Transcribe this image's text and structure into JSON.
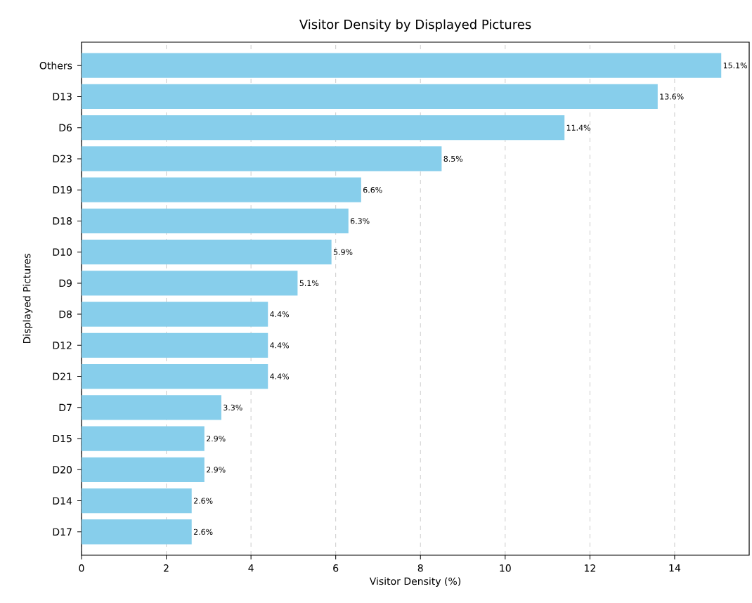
{
  "chart_data": {
    "type": "bar",
    "orientation": "horizontal",
    "title": "Visitor Density by Displayed Pictures",
    "xlabel": "Visitor Density (%)",
    "ylabel": "Displayed Pictures",
    "categories": [
      "Others",
      "D13",
      "D6",
      "D23",
      "D19",
      "D18",
      "D10",
      "D9",
      "D8",
      "D12",
      "D21",
      "D7",
      "D15",
      "D20",
      "D14",
      "D17"
    ],
    "values": [
      15.1,
      13.6,
      11.4,
      8.5,
      6.6,
      6.3,
      5.9,
      5.1,
      4.4,
      4.4,
      4.4,
      3.3,
      2.9,
      2.9,
      2.6,
      2.6
    ],
    "value_labels": [
      "15.1%",
      "13.6%",
      "11.4%",
      "8.5%",
      "6.6%",
      "6.3%",
      "5.9%",
      "5.1%",
      "4.4%",
      "4.4%",
      "4.4%",
      "3.3%",
      "2.9%",
      "2.9%",
      "2.6%",
      "2.6%"
    ],
    "color": "#87ceeb",
    "xlim": [
      0,
      15.76
    ],
    "xticks": [
      0,
      2,
      4,
      6,
      8,
      10,
      12,
      14
    ],
    "grid": "x"
  }
}
